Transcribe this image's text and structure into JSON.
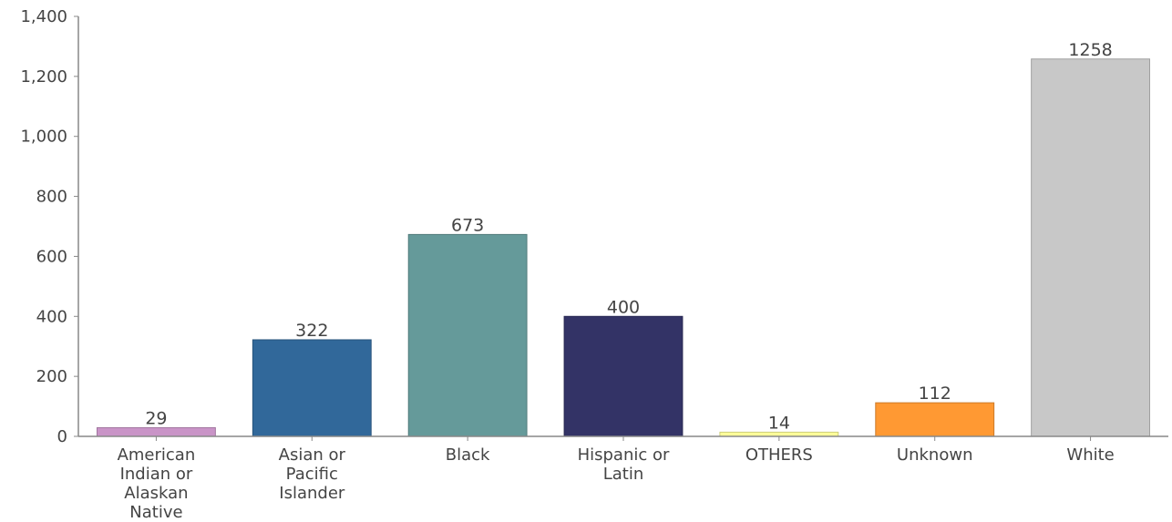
{
  "chart_data": {
    "type": "bar",
    "title": "",
    "xlabel": "",
    "ylabel": "",
    "categories": [
      "American Indian or Alaskan Native",
      "Asian or Pacific Islander",
      "Black",
      "Hispanic or Latin",
      "OTHERS",
      "Unknown",
      "White"
    ],
    "category_lines": [
      [
        "American",
        "Indian or",
        "Alaskan",
        "Native"
      ],
      [
        "Asian or",
        "Pacific",
        "Islander"
      ],
      [
        "Black"
      ],
      [
        "Hispanic or",
        "Latin"
      ],
      [
        "OTHERS"
      ],
      [
        "Unknown"
      ],
      [
        "White"
      ]
    ],
    "values": [
      29,
      322,
      673,
      400,
      14,
      112,
      1258
    ],
    "data_labels": [
      "29",
      "322",
      "673",
      "400",
      "14",
      "112",
      "1258"
    ],
    "colors": [
      "#c994c7",
      "#31689a",
      "#659a9a",
      "#333366",
      "#ffff99",
      "#ff9933",
      "#c8c8c8"
    ],
    "ylim": [
      0,
      1400
    ],
    "yticks": [
      0,
      200,
      400,
      600,
      800,
      1000,
      1200,
      1400
    ],
    "ytick_labels": [
      "0",
      "200",
      "400",
      "600",
      "800",
      "1,000",
      "1,200",
      "1,400"
    ],
    "grid": false,
    "legend": "none"
  }
}
